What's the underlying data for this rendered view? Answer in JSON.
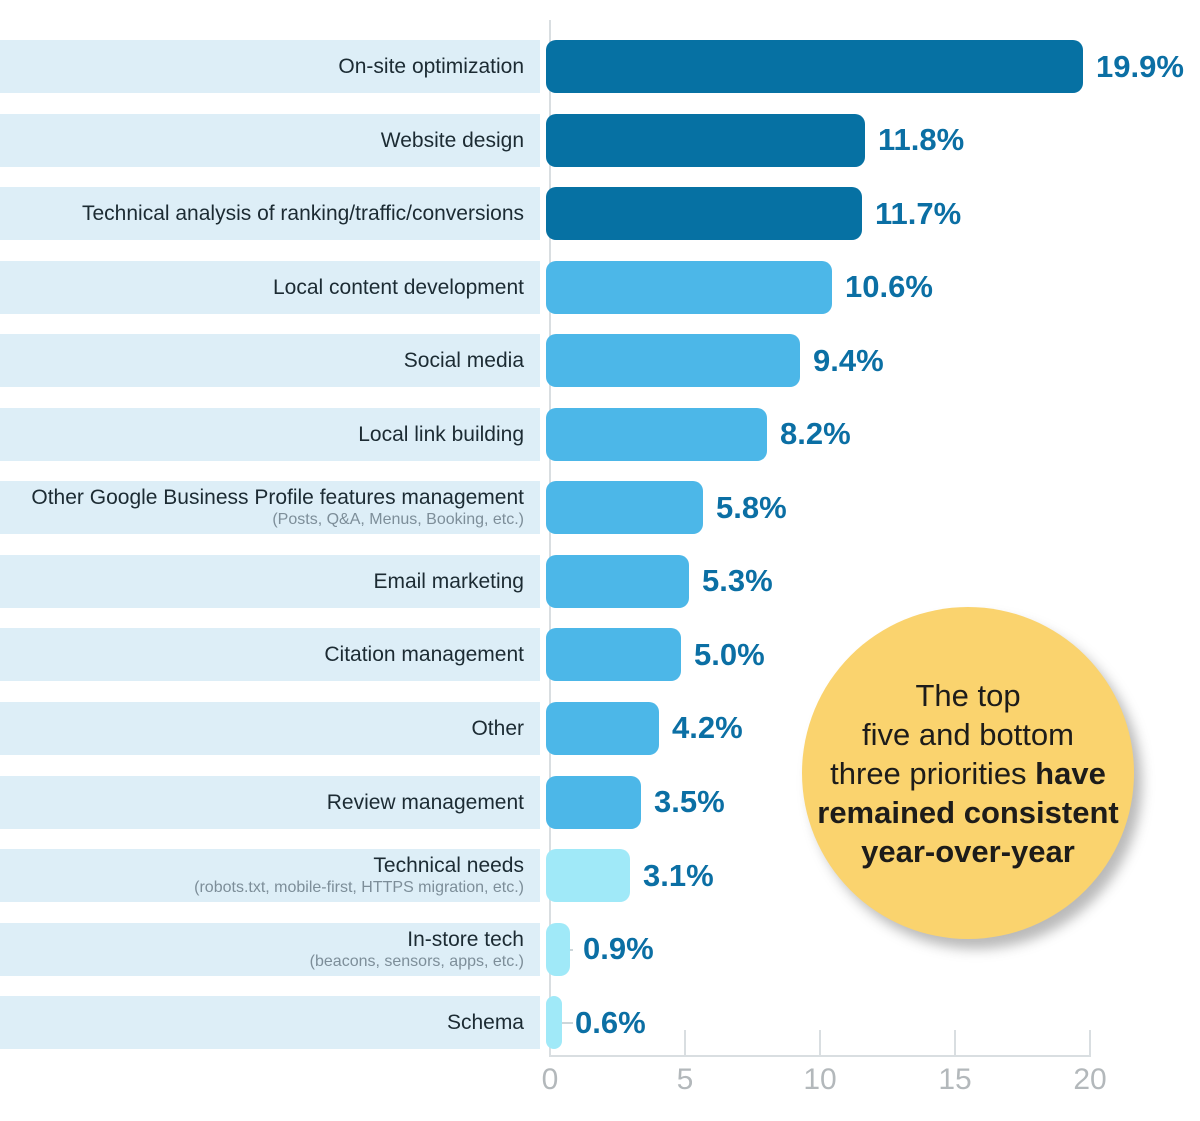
{
  "chart_data": {
    "type": "bar",
    "orientation": "horizontal",
    "title": "",
    "xlabel": "",
    "ylabel": "",
    "xlim": [
      0,
      20
    ],
    "x_ticks": [
      "0",
      "5",
      "10",
      "15",
      "20"
    ],
    "value_unit": "%",
    "grid": false,
    "legend": null,
    "bars": [
      {
        "label": "On-site optimization",
        "sublabel": "",
        "value": 19.9,
        "value_label": "19.9%",
        "tier": "dark"
      },
      {
        "label": "Website design",
        "sublabel": "",
        "value": 11.8,
        "value_label": "11.8%",
        "tier": "dark"
      },
      {
        "label": "Technical analysis of ranking/traffic/conversions",
        "sublabel": "",
        "value": 11.7,
        "value_label": "11.7%",
        "tier": "dark"
      },
      {
        "label": "Local content development",
        "sublabel": "",
        "value": 10.6,
        "value_label": "10.6%",
        "tier": "mid"
      },
      {
        "label": "Social media",
        "sublabel": "",
        "value": 9.4,
        "value_label": "9.4%",
        "tier": "mid"
      },
      {
        "label": "Local link building",
        "sublabel": "",
        "value": 8.2,
        "value_label": "8.2%",
        "tier": "mid"
      },
      {
        "label": "Other Google Business Profile features management",
        "sublabel": "(Posts, Q&A, Menus, Booking, etc.)",
        "value": 5.8,
        "value_label": "5.8%",
        "tier": "mid"
      },
      {
        "label": "Email marketing",
        "sublabel": "",
        "value": 5.3,
        "value_label": "5.3%",
        "tier": "mid"
      },
      {
        "label": "Citation management",
        "sublabel": "",
        "value": 5.0,
        "value_label": "5.0%",
        "tier": "mid"
      },
      {
        "label": "Other",
        "sublabel": "",
        "value": 4.2,
        "value_label": "4.2%",
        "tier": "mid"
      },
      {
        "label": "Review management",
        "sublabel": "",
        "value": 3.5,
        "value_label": "3.5%",
        "tier": "mid"
      },
      {
        "label": "Technical needs",
        "sublabel": "(robots.txt, mobile-first, HTTPS migration, etc.)",
        "value": 3.1,
        "value_label": "3.1%",
        "tier": "light"
      },
      {
        "label": "In-store tech",
        "sublabel": "(beacons, sensors, apps, etc.)",
        "value": 0.9,
        "value_label": "0.9%",
        "tier": "light"
      },
      {
        "label": "Schema",
        "sublabel": "",
        "value": 0.6,
        "value_label": "0.6%",
        "tier": "light"
      }
    ],
    "colors": {
      "tier_dark": "#0671a3",
      "tier_mid": "#4cb7e8",
      "tier_light": "#a0e9f8",
      "label_band": "#ddeef7",
      "value_text": "#0b6fa4",
      "label_text": "#1c2b33",
      "sublabel_text": "#7d8e99",
      "axis_line": "#d9dee1",
      "tick_label_text": "#b3b8bb"
    }
  },
  "callout": {
    "bg_color": "#fad36e",
    "lines": [
      {
        "regular": "The top",
        "bold": ""
      },
      {
        "regular": "five and bottom",
        "bold": ""
      },
      {
        "regular": "three priorities ",
        "bold": "have"
      },
      {
        "regular": "",
        "bold": "remained consistent"
      },
      {
        "regular": "",
        "bold": "year-over-year"
      }
    ]
  }
}
